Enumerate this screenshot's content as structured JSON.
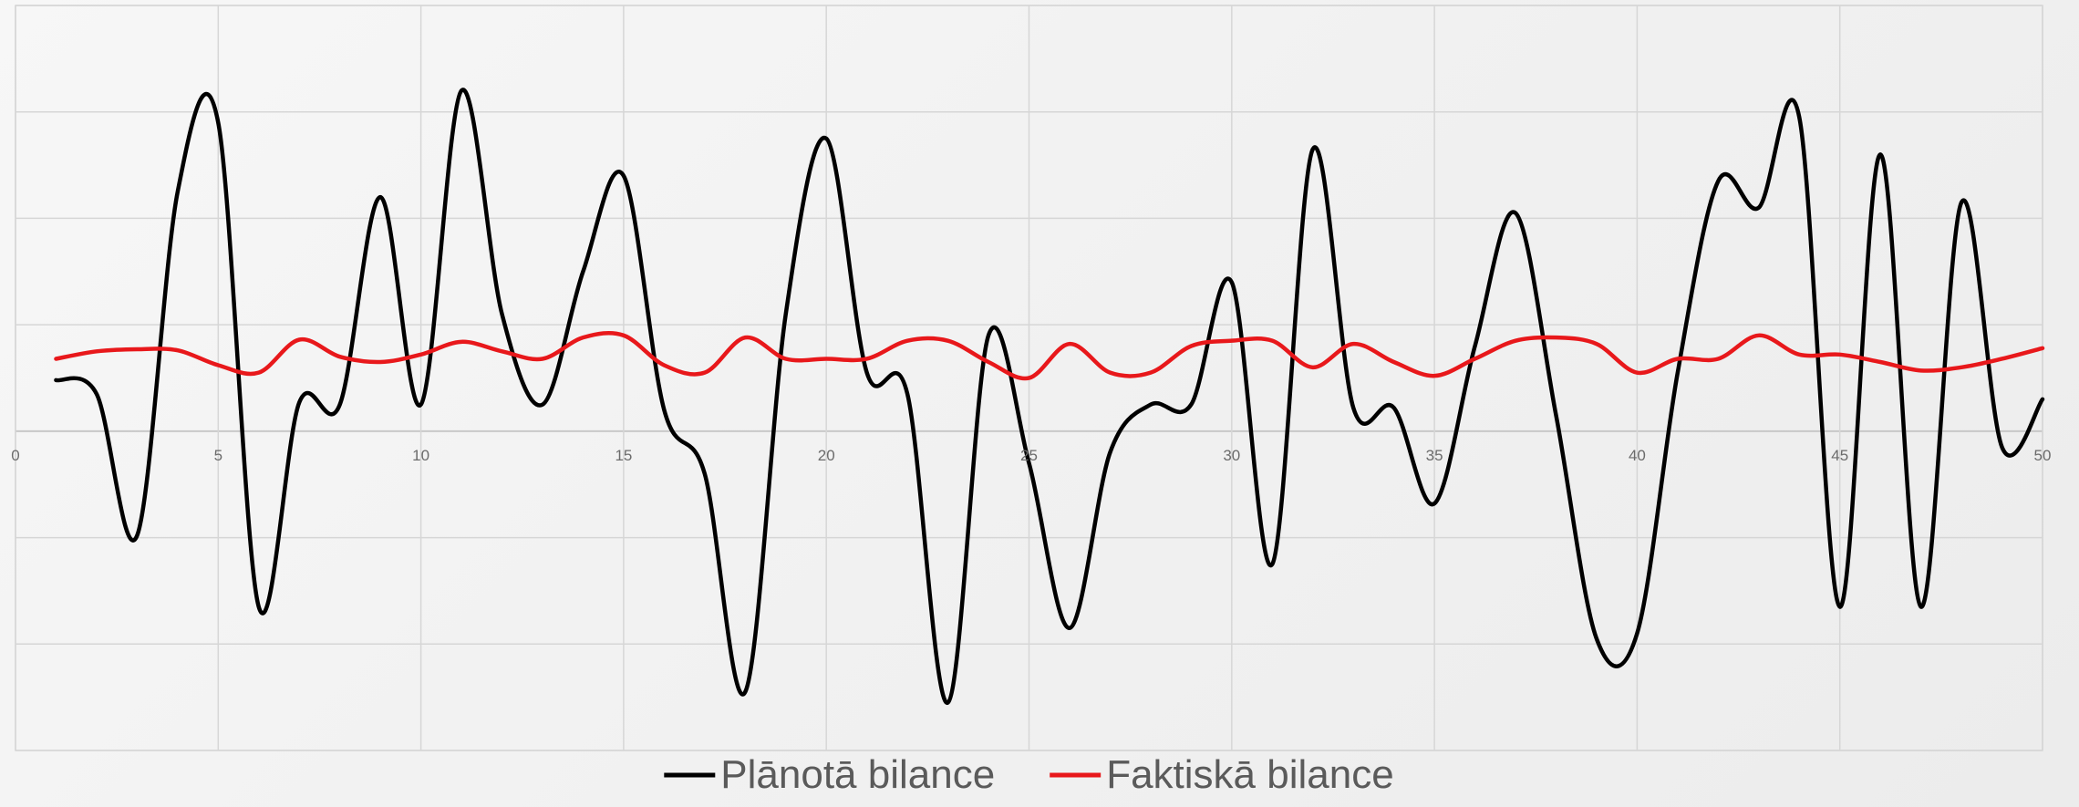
{
  "chart_data": {
    "type": "line",
    "x_ticks": [
      0,
      5,
      10,
      15,
      20,
      25,
      30,
      35,
      40,
      45,
      50
    ],
    "xlim": [
      0,
      50
    ],
    "ylim": [
      -3,
      4
    ],
    "y_gridlines": [
      -3,
      -2,
      -1,
      0,
      1,
      2,
      3,
      4
    ],
    "y_tick_labels_shown": false,
    "grid": true,
    "legend_position": "bottom",
    "series": [
      {
        "name": "Plānotā bilance",
        "color": "#000000",
        "x": [
          1,
          2,
          3,
          4,
          5,
          6,
          7,
          8,
          9,
          10,
          11,
          12,
          13,
          14,
          15,
          16,
          17,
          18,
          19,
          20,
          21,
          22,
          23,
          24,
          25,
          26,
          27,
          28,
          29,
          30,
          31,
          32,
          33,
          34,
          35,
          36,
          37,
          38,
          39,
          40,
          41,
          42,
          43,
          44,
          45,
          46,
          47,
          48,
          49,
          50
        ],
        "y": [
          0.48,
          0.35,
          -0.98,
          2.25,
          2.9,
          -1.65,
          0.27,
          0.25,
          2.2,
          0.25,
          3.2,
          1.1,
          0.25,
          1.5,
          2.4,
          0.2,
          -0.4,
          -2.45,
          1.1,
          2.75,
          0.55,
          0.35,
          -2.55,
          0.9,
          -0.3,
          -1.85,
          -0.2,
          0.25,
          0.25,
          1.4,
          -1.25,
          2.65,
          0.22,
          0.22,
          -0.68,
          0.8,
          2.05,
          0.15,
          -1.95,
          -1.9,
          0.55,
          2.35,
          2.1,
          2.95,
          -1.65,
          2.6,
          -1.65,
          2.15,
          -0.15,
          0.3
        ]
      },
      {
        "name": "Faktiskā bilance",
        "color": "#e8181b",
        "x": [
          1,
          2,
          3,
          4,
          5,
          6,
          7,
          8,
          9,
          10,
          11,
          12,
          13,
          14,
          15,
          16,
          17,
          18,
          19,
          20,
          21,
          22,
          23,
          24,
          25,
          26,
          27,
          28,
          29,
          30,
          31,
          32,
          33,
          34,
          35,
          36,
          37,
          38,
          39,
          40,
          41,
          42,
          43,
          44,
          45,
          46,
          47,
          48,
          49,
          50
        ],
        "y": [
          0.68,
          0.75,
          0.77,
          0.76,
          0.62,
          0.55,
          0.86,
          0.7,
          0.65,
          0.72,
          0.84,
          0.75,
          0.68,
          0.88,
          0.9,
          0.62,
          0.55,
          0.88,
          0.68,
          0.68,
          0.68,
          0.85,
          0.85,
          0.65,
          0.5,
          0.82,
          0.55,
          0.55,
          0.8,
          0.85,
          0.85,
          0.6,
          0.82,
          0.65,
          0.52,
          0.68,
          0.85,
          0.88,
          0.82,
          0.55,
          0.68,
          0.68,
          0.9,
          0.72,
          0.72,
          0.65,
          0.57,
          0.6,
          0.68,
          0.78
        ]
      }
    ]
  }
}
